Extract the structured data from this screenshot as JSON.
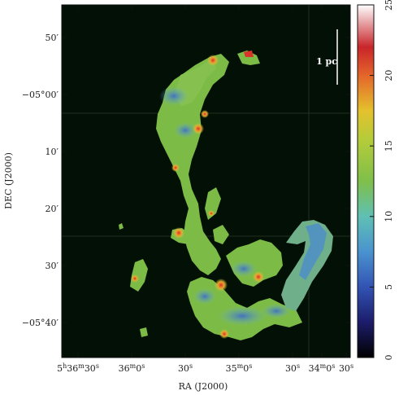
{
  "map": {
    "xlabel": "RA (J2000)",
    "ylabel": "DEC (J2000)",
    "scale_bar_label": "1 pc",
    "x_ticks": [
      {
        "h": "5",
        "hs": "h",
        "m": "36",
        "ms": "m",
        "s": "30",
        "ss": "s"
      },
      {
        "h": "",
        "hs": "",
        "m": "36",
        "ms": "m",
        "s": "0",
        "ss": "s"
      },
      {
        "h": "",
        "hs": "",
        "m": "",
        "ms": "",
        "s": "30",
        "ss": "s"
      },
      {
        "h": "",
        "hs": "",
        "m": "35",
        "ms": "m",
        "s": "0",
        "ss": "s"
      },
      {
        "h": "",
        "hs": "",
        "m": "",
        "ms": "",
        "s": "30",
        "ss": "s"
      },
      {
        "h": "",
        "hs": "",
        "m": "34",
        "ms": "m",
        "s": "0",
        "ss": "s"
      },
      {
        "h": "",
        "hs": "",
        "m": "",
        "ms": "",
        "s": "30",
        "ss": "s"
      }
    ],
    "y_ticks": [
      {
        "deg": "",
        "min": "50′"
      },
      {
        "deg": "−05°",
        "min": "00′"
      },
      {
        "deg": "",
        "min": "10′"
      },
      {
        "deg": "",
        "min": "20′"
      },
      {
        "deg": "",
        "min": "30′"
      },
      {
        "deg": "−05°",
        "min": "40′"
      }
    ],
    "colors": {
      "background": "#031006",
      "primary": "#7dbb47"
    }
  },
  "colorbar": {
    "ticks": [
      "0",
      "5",
      "10",
      "15",
      "20",
      "25"
    ],
    "range": [
      0,
      25
    ]
  }
}
